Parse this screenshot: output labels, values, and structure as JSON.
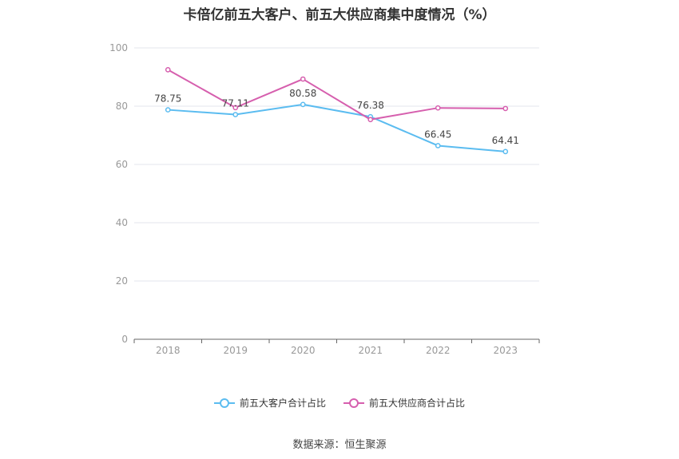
{
  "page": {
    "title": "卡倍亿前五大客户、前五大供应商集中度情况（%）",
    "source": "数据来源：恒生聚源"
  },
  "chart_data": {
    "type": "line",
    "categories": [
      "2018",
      "2019",
      "2020",
      "2021",
      "2022",
      "2023"
    ],
    "ylim": [
      0,
      100
    ],
    "yticks": [
      0,
      20,
      40,
      60,
      80,
      100
    ],
    "grid": true,
    "legend_position": "bottom",
    "series": [
      {
        "name": "前五大客户合计占比",
        "color": "#5bbcf0",
        "values": [
          78.75,
          77.11,
          80.58,
          76.38,
          66.45,
          64.41
        ],
        "data_labels": [
          "78.75",
          "77.11",
          "80.58",
          "76.38",
          "66.45",
          "64.41"
        ]
      },
      {
        "name": "前五大供应商合计占比",
        "color": "#d65fae",
        "values": [
          92.5,
          79.5,
          89.3,
          75.4,
          79.4,
          79.2
        ],
        "data_labels": []
      }
    ]
  }
}
